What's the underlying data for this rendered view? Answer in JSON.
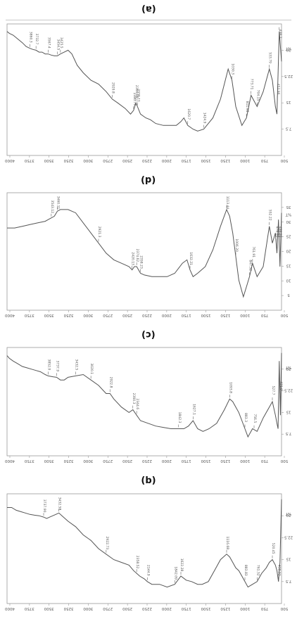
{
  "chart_data": [
    {
      "type": "line",
      "panel_label": "(a)",
      "label_upside_down": true,
      "xlim": [
        400,
        4000
      ],
      "ylim": [
        0,
        35
      ],
      "x_ticks": [
        "500",
        "750",
        "1000",
        "1250",
        "1500",
        "1750",
        "2000",
        "2250",
        "2500",
        "2750",
        "3000",
        "3250",
        "3500",
        "3750",
        "4000"
      ],
      "y_ticks": [
        "7.5",
        "15",
        "22.5",
        "30"
      ],
      "y_unit": "%T",
      "series": [
        {
          "x": [
            400,
            430,
            460,
            480,
            520,
            560,
            640,
            720,
            800,
            860,
            920,
            1000,
            1050,
            1100,
            1200,
            1300,
            1420,
            1500,
            1560,
            1630,
            1680,
            1720,
            1780,
            1850,
            1950,
            2050,
            2120,
            2180,
            2250,
            2290,
            2310,
            2340,
            2380,
            2450,
            2550,
            2620,
            2700,
            2800,
            2900,
            3000,
            3080,
            3150,
            3200,
            3250,
            3300,
            3340,
            3380,
            3420,
            3460,
            3500,
            3540,
            3580,
            3620,
            3660,
            3700,
            3750,
            3800,
            3860,
            3920,
            3970,
            4000
          ],
          "y": [
            10,
            2,
            24,
            22,
            15,
            12,
            18,
            22,
            19,
            25,
            27,
            22,
            15,
            12,
            20,
            25,
            28,
            28.5,
            28,
            27,
            25,
            26,
            27,
            27,
            27,
            26.5,
            25.5,
            25,
            24,
            22,
            21,
            23,
            24,
            22.5,
            21,
            20,
            18,
            16,
            15,
            13,
            11,
            8,
            7,
            7.5,
            8,
            8.5,
            8.5,
            8.3,
            8,
            8,
            7.5,
            7.5,
            7,
            6.8,
            6.5,
            6,
            5,
            4,
            3,
            2.5,
            2
          ]
        }
      ],
      "peak_labels": [
        {
          "x": 430,
          "text": "438.2"
        },
        {
          "x": 455,
          "text": "453.96"
        },
        {
          "x": 560,
          "text": "533.79"
        },
        {
          "x": 720,
          "text": "704.15"
        },
        {
          "x": 800,
          "text": "773.71"
        },
        {
          "x": 860,
          "text": "811.98"
        },
        {
          "x": 1050,
          "text": "1030.3"
        },
        {
          "x": 1420,
          "text": "1424.9"
        },
        {
          "x": 1630,
          "text": "1620.7"
        },
        {
          "x": 2290,
          "text": "2339.11"
        },
        {
          "x": 2310,
          "text": "2360.06"
        },
        {
          "x": 2340,
          "text": "2380.79"
        },
        {
          "x": 2620,
          "text": "2929.8"
        },
        {
          "x": 3300,
          "text": "3425.5"
        },
        {
          "x": 3340,
          "text": "3454.5"
        },
        {
          "x": 3460,
          "text": "3567.4"
        },
        {
          "x": 3620,
          "text": "3732.7"
        },
        {
          "x": 3700,
          "text": "3860.3"
        }
      ]
    },
    {
      "type": "line",
      "panel_label": "(d)",
      "label_upside_down": true,
      "xlim": [
        400,
        4000
      ],
      "ylim": [
        0,
        35
      ],
      "x_ticks": [
        "500",
        "750",
        "1000",
        "1250",
        "1500",
        "1750",
        "2000",
        "2250",
        "2500",
        "2750",
        "3000",
        "3250",
        "3500",
        "3750",
        "4000"
      ],
      "y_ticks": [
        "5",
        "10",
        "15",
        "20",
        "25",
        "30",
        "35"
      ],
      "y_unit": "%T",
      "series": [
        {
          "x": [
            400,
            420,
            440,
            460,
            480,
            520,
            560,
            640,
            720,
            780,
            820,
            860,
            900,
            960,
            1000,
            1040,
            1080,
            1120,
            1200,
            1300,
            1400,
            1500,
            1560,
            1600,
            1640,
            1700,
            1800,
            1900,
            2000,
            2100,
            2200,
            2250,
            2300,
            2330,
            2360,
            2400,
            2500,
            2600,
            2700,
            2800,
            2900,
            3000,
            3100,
            3200,
            3300,
            3340,
            3380,
            3420,
            3460,
            3500,
            3600,
            3700,
            3800,
            3900,
            4000
          ],
          "y": [
            6,
            22,
            8,
            18,
            12,
            15,
            10,
            22,
            25,
            21,
            25,
            28,
            31,
            26,
            19,
            12,
            7,
            5,
            10,
            17,
            22,
            24,
            25,
            23,
            20,
            21,
            24,
            25,
            25,
            25,
            24.5,
            24,
            22,
            22,
            23,
            22,
            21,
            20,
            18,
            15,
            12,
            9,
            6,
            5,
            5,
            5.5,
            7,
            7.5,
            8,
            8.5,
            9,
            9.5,
            10,
            10.5,
            10.5
          ]
        }
      ],
      "peak_labels": [
        {
          "x": 430,
          "text": "438.26"
        },
        {
          "x": 470,
          "text": "478.80"
        },
        {
          "x": 560,
          "text": "552.22"
        },
        {
          "x": 780,
          "text": "761.91"
        },
        {
          "x": 820,
          "text": "847.52"
        },
        {
          "x": 1000,
          "text": "1006.20"
        },
        {
          "x": 1120,
          "text": "1113.44"
        },
        {
          "x": 1600,
          "text": "1632.21"
        },
        {
          "x": 2250,
          "text": "2358.23"
        },
        {
          "x": 2300,
          "text": "2374.62"
        },
        {
          "x": 2360,
          "text": "2420.13"
        },
        {
          "x": 2800,
          "text": "2921.3"
        },
        {
          "x": 3340,
          "text": "3460.11"
        },
        {
          "x": 3420,
          "text": "3543.12"
        }
      ]
    },
    {
      "type": "line",
      "panel_label": "(c)",
      "label_upside_down": true,
      "xlim": [
        400,
        4000
      ],
      "ylim": [
        0,
        40
      ],
      "x_ticks": [
        "500",
        "750",
        "1000",
        "1250",
        "1500",
        "1750",
        "2000",
        "2250",
        "2500",
        "2750",
        "3000",
        "3250",
        "3500",
        "3750",
        "4000"
      ],
      "y_ticks": [
        "7.5",
        "15",
        "22.5",
        "30"
      ],
      "y_unit": "%T",
      "series": [
        {
          "x": [
            400,
            415,
            430,
            445,
            460,
            480,
            520,
            560,
            640,
            720,
            780,
            840,
            880,
            920,
            960,
            1000,
            1040,
            1080,
            1150,
            1250,
            1350,
            1430,
            1500,
            1560,
            1620,
            1680,
            1760,
            1850,
            1950,
            2050,
            2150,
            2250,
            2300,
            2350,
            2400,
            2500,
            2600,
            2650,
            2700,
            2800,
            2900,
            3000,
            3100,
            3200,
            3250,
            3300,
            3350,
            3400,
            3460,
            3500,
            3560,
            3620,
            3680,
            3740,
            3800,
            3860,
            3920,
            3970,
            4000
          ],
          "y": [
            2,
            25,
            5,
            30,
            28,
            25,
            20,
            22,
            26,
            31,
            30,
            33,
            30,
            27,
            24,
            22,
            20,
            19,
            23,
            28,
            30,
            31,
            30,
            27,
            29,
            30,
            30,
            30,
            29.5,
            29,
            28,
            27,
            25,
            23,
            24,
            22,
            19,
            17,
            17,
            14,
            12,
            10,
            10.5,
            11,
            12,
            12,
            11,
            10.8,
            10.5,
            10,
            9,
            8.5,
            8,
            7.5,
            7,
            6,
            5,
            4,
            3
          ]
        }
      ],
      "peak_labels": [
        {
          "x": 420,
          "text": "431.9"
        },
        {
          "x": 520,
          "text": "527.7"
        },
        {
          "x": 760,
          "text": "756.5"
        },
        {
          "x": 880,
          "text": "883.3"
        },
        {
          "x": 1080,
          "text": "1093.8"
        },
        {
          "x": 1560,
          "text": "1627.1"
        },
        {
          "x": 1750,
          "text": "1842.3"
        },
        {
          "x": 2300,
          "text": "2344.6"
        },
        {
          "x": 2350,
          "text": "2360.3"
        },
        {
          "x": 2650,
          "text": "2922.8"
        },
        {
          "x": 2900,
          "text": "3020.1"
        },
        {
          "x": 3100,
          "text": "3432.5"
        },
        {
          "x": 3350,
          "text": "3737.9"
        },
        {
          "x": 3460,
          "text": "3852.9"
        }
      ]
    },
    {
      "type": "line",
      "panel_label": "(b)",
      "label_upside_down": false,
      "xlim": [
        400,
        4000
      ],
      "ylim": [
        0,
        40
      ],
      "x_ticks": [
        "500",
        "750",
        "1000",
        "1250",
        "1500",
        "1750",
        "2000",
        "2250",
        "2500",
        "2750",
        "3000",
        "3250",
        "3500",
        "3750",
        "4000"
      ],
      "y_ticks": [
        "7.5",
        "15",
        "22.5",
        "30"
      ],
      "y_unit": "%T",
      "series": [
        {
          "x": [
            400,
            420,
            440,
            460,
            480,
            520,
            560,
            600,
            660,
            720,
            780,
            840,
            880,
            920,
            960,
            1000,
            1040,
            1080,
            1120,
            1200,
            1280,
            1360,
            1440,
            1500,
            1580,
            1650,
            1720,
            1800,
            1900,
            2000,
            2100,
            2160,
            2200,
            2260,
            2300,
            2340,
            2400,
            2500,
            2600,
            2700,
            2800,
            2900,
            3000,
            3100,
            3200,
            3280,
            3320,
            3360,
            3400,
            3440,
            3480,
            3520,
            3580,
            3640,
            3700,
            3760,
            3820,
            3880,
            3940,
            4000
          ],
          "y": [
            2,
            25,
            32,
            28,
            26,
            24,
            25,
            27,
            29,
            32,
            33,
            34,
            32,
            30,
            28,
            27,
            25,
            23,
            22,
            24,
            28,
            32,
            33,
            33,
            32,
            31.5,
            30,
            33,
            34,
            33,
            33,
            32,
            31,
            30,
            29,
            28,
            26,
            25,
            24,
            22,
            20,
            17,
            15,
            12,
            10,
            8,
            7,
            7.5,
            8,
            8.5,
            9,
            8.5,
            8,
            7.8,
            7.5,
            7,
            6.5,
            6,
            5,
            5
          ]
        }
      ],
      "peak_labels": [
        {
          "x": 440,
          "text": "438.92"
        },
        {
          "x": 520,
          "text": "520.45"
        },
        {
          "x": 720,
          "text": "761.52"
        },
        {
          "x": 880,
          "text": "883.83"
        },
        {
          "x": 1120,
          "text": "1116.68"
        },
        {
          "x": 1720,
          "text": "1622.28"
        },
        {
          "x": 1800,
          "text": "1842.09"
        },
        {
          "x": 2160,
          "text": "2144.9"
        },
        {
          "x": 2300,
          "text": "2358.52"
        },
        {
          "x": 2700,
          "text": "2922.73"
        },
        {
          "x": 3320,
          "text": "3432.58"
        },
        {
          "x": 3520,
          "text": "3737.90"
        }
      ]
    }
  ]
}
